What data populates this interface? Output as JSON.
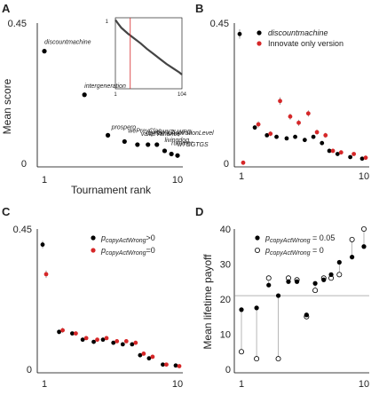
{
  "figure": {
    "panels": [
      {
        "letter": "A"
      },
      {
        "letter": "B"
      },
      {
        "letter": "C"
      },
      {
        "letter": "D"
      }
    ]
  },
  "chart_data": [
    {
      "id": "A",
      "type": "scatter",
      "xscale": "log",
      "x": [
        1,
        2,
        3,
        4,
        5,
        6,
        7,
        8,
        9,
        10
      ],
      "values": [
        0.36,
        0.22,
        0.09,
        0.07,
        0.06,
        0.06,
        0.06,
        0.04,
        0.03,
        0.025
      ],
      "labels": [
        "discountmachine",
        "intergeneration",
        "prospero",
        "wePreyClan",
        "valueVariance",
        "dynamicAspirationLevel",
        "cWYTLWPD",
        "livingdog",
        "rummer",
        "wTGGTGS"
      ],
      "ylabel": "Mean score",
      "xlabel": "Tournament rank",
      "ylim": [
        0,
        0.45
      ],
      "yticks": [
        "0",
        "0.45"
      ],
      "xticks": [
        "1",
        "10"
      ],
      "color": "#000000",
      "inset": {
        "type": "line",
        "xticks": [
          "1",
          "104"
        ],
        "yticks": [
          "0",
          "1"
        ],
        "x": [
          1,
          5,
          10,
          20,
          30,
          40,
          50,
          60,
          70,
          80,
          90,
          100,
          104
        ],
        "values": [
          0.97,
          0.92,
          0.86,
          0.78,
          0.71,
          0.64,
          0.56,
          0.49,
          0.42,
          0.35,
          0.29,
          0.23,
          0.2
        ],
        "marker_x": 24,
        "line_color": "#444444",
        "marker_color": "#d62728"
      }
    },
    {
      "id": "B",
      "type": "scatter",
      "xscale": "log",
      "ylim": [
        0,
        0.45
      ],
      "yticks": [
        "0",
        "0.45"
      ],
      "xticks": [
        "1",
        "10"
      ],
      "series": [
        {
          "name": "discountmachine",
          "color": "#000000",
          "x": [
            1,
            1.33,
            1.67,
            2,
            2.42,
            2.84,
            3.4,
            4,
            4.7,
            5.4,
            6.3,
            8,
            10
          ],
          "values": [
            0.415,
            0.115,
            0.09,
            0.085,
            0.08,
            0.085,
            0.075,
            0.085,
            0.065,
            0.04,
            0.03,
            0.02,
            0.015
          ],
          "err": [
            0.015,
            0.008,
            0.006,
            0.006,
            0.006,
            0.006,
            0.006,
            0.006,
            0.006,
            0.005,
            0.004,
            0.004,
            0.003
          ]
        },
        {
          "name": "Innovate only version",
          "color": "#d62728",
          "x": [
            1,
            1.33,
            1.67,
            2,
            2.42,
            2.84,
            3.4,
            4,
            4.7,
            5.4,
            6.3,
            8,
            10
          ],
          "values": [
            0.002,
            0.125,
            0.095,
            0.2,
            0.15,
            0.13,
            0.16,
            0.1,
            0.09,
            0.04,
            0.035,
            0.03,
            0.018
          ],
          "err": [
            0.003,
            0.01,
            0.008,
            0.012,
            0.01,
            0.01,
            0.01,
            0.008,
            0.008,
            0.005,
            0.005,
            0.004,
            0.004
          ]
        }
      ],
      "legend": "top-right"
    },
    {
      "id": "C",
      "type": "scatter",
      "xscale": "log",
      "ylim": [
        0,
        0.45
      ],
      "yticks": [
        "0",
        "0.45"
      ],
      "xticks": [
        "1",
        "10"
      ],
      "series": [
        {
          "name_parts": {
            "base": "p",
            "sub": "copyActWrong",
            "suffix": ">0"
          },
          "color": "#000000",
          "x": [
            1,
            1.33,
            1.67,
            2,
            2.42,
            2.84,
            3.4,
            4,
            4.7,
            5.4,
            6.3,
            8,
            10
          ],
          "values": [
            0.4,
            0.12,
            0.115,
            0.095,
            0.088,
            0.095,
            0.085,
            0.08,
            0.08,
            0.045,
            0.035,
            0.015,
            0.012
          ],
          "err": [
            0.012,
            0.008,
            0.006,
            0.006,
            0.006,
            0.006,
            0.006,
            0.006,
            0.006,
            0.005,
            0.004,
            0.004,
            0.003
          ]
        },
        {
          "name_parts": {
            "base": "p",
            "sub": "copyActWrong",
            "suffix": "=0"
          },
          "color": "#d62728",
          "x": [
            1,
            1.33,
            1.67,
            2,
            2.42,
            2.84,
            3.4,
            4,
            4.7,
            5.4,
            6.3,
            8,
            10
          ],
          "values": [
            0.305,
            0.125,
            0.115,
            0.1,
            0.095,
            0.1,
            0.09,
            0.09,
            0.085,
            0.05,
            0.04,
            0.015,
            0.01
          ],
          "err": [
            0.012,
            0.008,
            0.006,
            0.006,
            0.006,
            0.006,
            0.006,
            0.006,
            0.006,
            0.005,
            0.004,
            0.004,
            0.003
          ]
        }
      ],
      "legend": "top-right"
    },
    {
      "id": "D",
      "type": "scatter",
      "xscale": "log",
      "ylabel": "Mean lifetime payoff",
      "ylim": [
        0,
        40
      ],
      "yticks": [
        "0",
        "10",
        "20",
        "30",
        "40"
      ],
      "xticks": [
        "1",
        "10"
      ],
      "reference_line_y": 21,
      "series": [
        {
          "name_parts": {
            "base": "p",
            "sub": "copyActWrong",
            "suffix": " = 0.05"
          },
          "marker": "filled",
          "color": "#000000",
          "x": [
            1,
            1.33,
            1.67,
            2,
            2.42,
            2.84,
            3.4,
            4,
            4.7,
            5.4,
            6.3,
            8,
            10
          ],
          "values": [
            17,
            17.5,
            24,
            21,
            25,
            25,
            15.5,
            24.5,
            25.5,
            27,
            30.5,
            32,
            35
          ]
        },
        {
          "name_parts": {
            "base": "p",
            "sub": "copyActWrong",
            "suffix": " = 0"
          },
          "marker": "open",
          "color": "#000000",
          "x": [
            1,
            1.33,
            1.67,
            2,
            2.42,
            2.84,
            3.4,
            4,
            4.7,
            5.4,
            6.3,
            8,
            10
          ],
          "values": [
            5,
            3,
            26,
            3,
            26,
            25.5,
            15,
            22.5,
            26,
            26,
            27,
            37,
            40
          ]
        }
      ],
      "legend": "top-left"
    }
  ]
}
